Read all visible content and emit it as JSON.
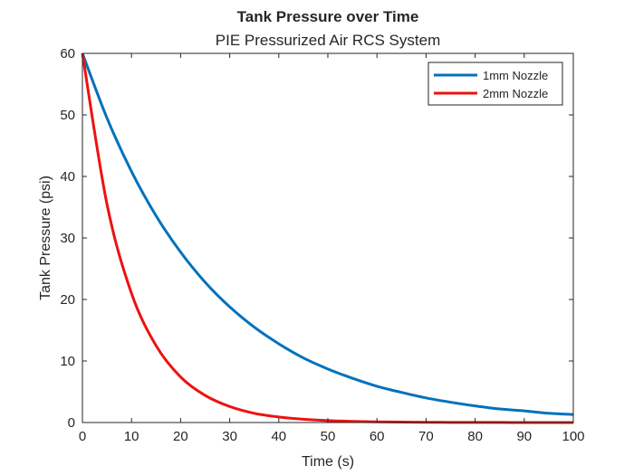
{
  "chart_data": {
    "type": "line",
    "title": "Tank Pressure over Time",
    "subtitle": "PIE Pressurized Air RCS System",
    "xlabel": "Time (s)",
    "ylabel": "Tank Pressure (psi)",
    "xlim": [
      0,
      100
    ],
    "ylim": [
      0,
      60
    ],
    "xticks": [
      0,
      10,
      20,
      30,
      40,
      50,
      60,
      70,
      80,
      90,
      100
    ],
    "yticks": [
      0,
      10,
      20,
      30,
      40,
      50,
      60
    ],
    "grid": false,
    "legend": "top-right",
    "series": [
      {
        "name": "1mm Nozzle",
        "color": "#0072BD",
        "x": [
          0,
          5,
          10,
          15,
          20,
          25,
          30,
          35,
          40,
          45,
          50,
          55,
          60,
          65,
          70,
          75,
          80,
          85,
          90,
          95,
          100
        ],
        "values": [
          60,
          49.5,
          40.8,
          33.6,
          27.7,
          22.8,
          18.8,
          15.5,
          12.8,
          10.5,
          8.7,
          7.2,
          5.9,
          4.9,
          4.0,
          3.3,
          2.7,
          2.2,
          1.9,
          1.5,
          1.3
        ]
      },
      {
        "name": "2mm Nozzle",
        "color": "#EE1111",
        "x": [
          0,
          5,
          10,
          15,
          20,
          25,
          30,
          35,
          40,
          45,
          50,
          55,
          60,
          65,
          70,
          75,
          80,
          85,
          90,
          95,
          100
        ],
        "values": [
          60,
          35.5,
          21.0,
          12.5,
          7.4,
          4.4,
          2.6,
          1.5,
          0.9,
          0.54,
          0.32,
          0.19,
          0.11,
          0.07,
          0.04,
          0.02,
          0.01,
          0.01,
          0.0,
          0.0,
          0.0
        ]
      }
    ]
  }
}
